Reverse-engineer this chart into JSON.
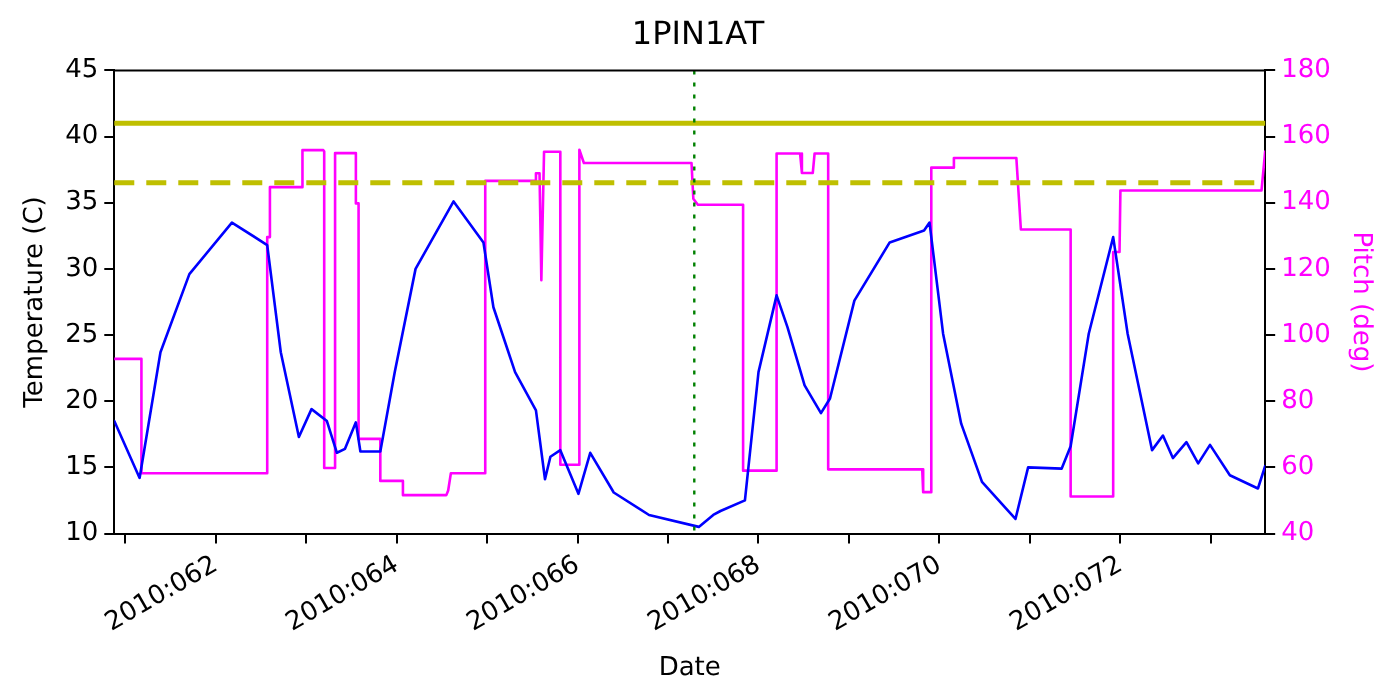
{
  "chart_data": {
    "type": "line",
    "title": "1PIN1AT",
    "xlabel": "Date",
    "ylabel": "Temperature (C)",
    "y2label": "Pitch (deg)",
    "xlim": [
      "2010-03-01T21:07",
      "2010-03-14T14:24"
    ],
    "xticks": [
      {
        "value": "2010-03-02",
        "label": null
      },
      {
        "value": "2010-03-03",
        "label": "2010:062"
      },
      {
        "value": "2010-03-04",
        "label": null
      },
      {
        "value": "2010-03-05",
        "label": "2010:064"
      },
      {
        "value": "2010-03-06",
        "label": null
      },
      {
        "value": "2010-03-07",
        "label": "2010:066"
      },
      {
        "value": "2010-03-08",
        "label": null
      },
      {
        "value": "2010-03-09",
        "label": "2010:068"
      },
      {
        "value": "2010-03-10",
        "label": null
      },
      {
        "value": "2010-03-11",
        "label": "2010:070"
      },
      {
        "value": "2010-03-12",
        "label": null
      },
      {
        "value": "2010-03-13",
        "label": "2010:072"
      },
      {
        "value": "2010-03-14",
        "label": null
      }
    ],
    "ylim": [
      10,
      45
    ],
    "yticks": [
      10,
      15,
      20,
      25,
      30,
      35,
      40,
      45
    ],
    "y2lim": [
      40,
      180
    ],
    "y2ticks": [
      40,
      60,
      80,
      100,
      120,
      140,
      160,
      180
    ],
    "grid": false,
    "legend": false,
    "marker": "none",
    "line_style": "solid",
    "series": [
      {
        "color": "#0000ff",
        "x": [
          "2010-03-01T21:07",
          "2010-03-02T03:50",
          "2010-03-02T09:22",
          "2010-03-02T17:02",
          "2010-03-03T04:19",
          "2010-03-03T13:41",
          "2010-03-03T17:17",
          "2010-03-03T22:05",
          "2010-03-04T01:26",
          "2010-03-04T05:31",
          "2010-03-04T08:10",
          "2010-03-04T10:19",
          "2010-03-04T13:12",
          "2010-03-04T14:24",
          "2010-03-04T19:41",
          "2010-03-04T23:31",
          "2010-03-05T05:02",
          "2010-03-05T15:07",
          "2010-03-05T23:02",
          "2010-03-06T01:41",
          "2010-03-06T07:26",
          "2010-03-06T12:58",
          "2010-03-06T15:22",
          "2010-03-06T16:48",
          "2010-03-06T19:26",
          "2010-03-07T00:14",
          "2010-03-07T03:22",
          "2010-03-07T09:36",
          "2010-03-07T18:58",
          "2010-03-08T08:10",
          "2010-03-08T12:00",
          "2010-03-08T13:55",
          "2010-03-08T20:24",
          "2010-03-09T00:00",
          "2010-03-09T04:48",
          "2010-03-09T07:41",
          "2010-03-09T12:14",
          "2010-03-09T16:34",
          "2010-03-09T18:58",
          "2010-03-10T01:26",
          "2010-03-10T10:48",
          "2010-03-10T19:55",
          "2010-03-10T21:22",
          "2010-03-11T00:58",
          "2010-03-11T05:46",
          "2010-03-11T11:17",
          "2010-03-11T20:10",
          "2010-03-11T23:31",
          "2010-03-12T08:24",
          "2010-03-12T10:48",
          "2010-03-12T15:36",
          "2010-03-12T22:05",
          "2010-03-13T01:55",
          "2010-03-13T08:24",
          "2010-03-13T11:17",
          "2010-03-13T13:55",
          "2010-03-13T17:31",
          "2010-03-13T20:38",
          "2010-03-13T23:46",
          "2010-03-14T05:02",
          "2010-03-14T12:29",
          "2010-03-14T14:24"
        ],
        "values": [
          18.5,
          14.2,
          23.7,
          29.6,
          33.5,
          31.8,
          23.7,
          17.3,
          19.4,
          18.5,
          16.1,
          16.4,
          18.4,
          16.2,
          16.2,
          22.2,
          30.0,
          35.1,
          32.0,
          27.1,
          22.2,
          19.3,
          14.1,
          15.8,
          16.3,
          13.0,
          16.1,
          13.1,
          11.4,
          10.5,
          11.4,
          11.7,
          12.5,
          22.2,
          28.0,
          25.6,
          21.2,
          19.1,
          20.2,
          27.6,
          32.0,
          32.9,
          33.5,
          25.1,
          18.3,
          13.9,
          11.1,
          15.0,
          14.9,
          16.6,
          25.1,
          32.4,
          25.1,
          16.3,
          17.4,
          15.7,
          16.9,
          15.3,
          16.7,
          14.4,
          13.4,
          15.1
        ]
      },
      {
        "color": "#ff00ff",
        "axis": "y2",
        "x": [
          "2010-03-01T21:07",
          "2010-03-02T04:19",
          "2010-03-02T04:19",
          "2010-03-03T13:41",
          "2010-03-03T13:41",
          "2010-03-03T14:24",
          "2010-03-03T14:24",
          "2010-03-03T23:02",
          "2010-03-03T23:02",
          "2010-03-04T04:34",
          "2010-03-04T04:48",
          "2010-03-04T04:48",
          "2010-03-04T07:41",
          "2010-03-04T07:41",
          "2010-03-04T13:12",
          "2010-03-04T13:12",
          "2010-03-04T13:55",
          "2010-03-04T13:55",
          "2010-03-04T19:41",
          "2010-03-04T19:41",
          "2010-03-05T01:41",
          "2010-03-05T01:41",
          "2010-03-05T13:12",
          "2010-03-05T13:41",
          "2010-03-05T14:24",
          "2010-03-05T23:31",
          "2010-03-05T23:31",
          "2010-03-06T12:29",
          "2010-03-06T12:58",
          "2010-03-06T13:55",
          "2010-03-06T14:24",
          "2010-03-06T15:07",
          "2010-03-06T19:26",
          "2010-03-06T19:26",
          "2010-03-07T00:14",
          "2010-03-07T00:29",
          "2010-03-07T01:41",
          "2010-03-08T06:14",
          "2010-03-08T06:43",
          "2010-03-08T07:55",
          "2010-03-08T19:55",
          "2010-03-08T19:55",
          "2010-03-09T04:48",
          "2010-03-09T04:48",
          "2010-03-09T11:02",
          "2010-03-09T11:31",
          "2010-03-09T14:24",
          "2010-03-09T14:53",
          "2010-03-09T18:29",
          "2010-03-09T18:29",
          "2010-03-10T19:26",
          "2010-03-10T19:41",
          "2010-03-10T21:50",
          "2010-03-10T21:50",
          "2010-03-11T03:50",
          "2010-03-11T03:50",
          "2010-03-11T20:24",
          "2010-03-11T21:36",
          "2010-03-12T10:48",
          "2010-03-12T10:48",
          "2010-03-12T22:05",
          "2010-03-12T22:05",
          "2010-03-12T23:46",
          "2010-03-13T00:00",
          "2010-03-14T13:26",
          "2010-03-14T14:24"
        ],
        "values": [
          92.8,
          92.8,
          58.2,
          58.2,
          129.6,
          129.6,
          144.7,
          144.7,
          155.9,
          155.9,
          155.5,
          59.8,
          59.8,
          155,
          155,
          139.8,
          139.8,
          68.6,
          68.6,
          55.9,
          55.9,
          51.6,
          51.6,
          53,
          58.2,
          58.2,
          146.6,
          146.6,
          148.9,
          148.9,
          116.6,
          155.4,
          155.4,
          60.8,
          60.8,
          156,
          152,
          152,
          141.2,
          139.4,
          139.4,
          59.0,
          59.0,
          154.9,
          154.9,
          149.0,
          149.0,
          154.9,
          154.9,
          59.4,
          59.4,
          52.5,
          52.5,
          150.6,
          150.6,
          153.5,
          153.5,
          131.9,
          131.9,
          51.2,
          51.2,
          125.1,
          125.1,
          143.7,
          143.7,
          155.5
        ]
      }
    ],
    "ref_lines": [
      {
        "axis": "y",
        "value": 41,
        "color": "#bfbf00",
        "line_style": "solid"
      },
      {
        "axis": "y",
        "value": 36.5,
        "color": "#bfbf00",
        "line_style": "dashed"
      },
      {
        "axis": "x",
        "value": "2010-03-08T06:58",
        "color": "#008000",
        "line_style": "dotted"
      }
    ]
  }
}
